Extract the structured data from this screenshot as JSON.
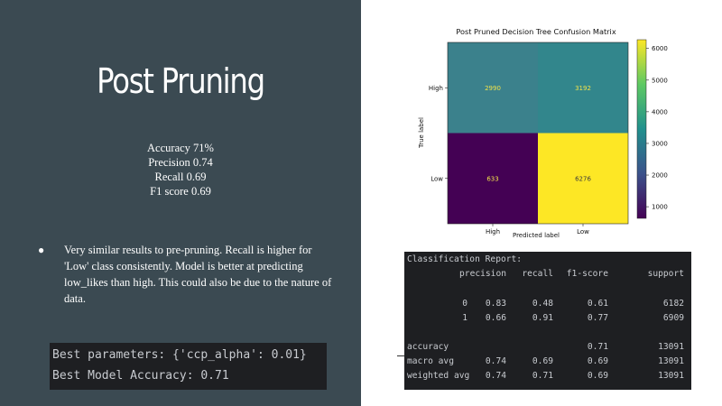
{
  "slide": {
    "title": "Post Pruning",
    "metrics": [
      "Accuracy 71%",
      "Precision 0.74",
      "Recall 0.69",
      "F1 score 0.69"
    ],
    "bullet": "Very similar results to pre-pruning. Recall is higher for 'Low' class consistently. Model is better at predicting low_likes than high. This could also be due to the nature of data.",
    "bullet_marker": "●",
    "code_lines": [
      "Best parameters: {'ccp_alpha': 0.01}",
      "Best Model Accuracy: 0.71"
    ]
  },
  "chart_data": {
    "type": "heatmap",
    "title": "Post Pruned Decision Tree Confusion Matrix",
    "xlabel": "Predicted label",
    "ylabel": "True label",
    "x_categories": [
      "High",
      "Low"
    ],
    "y_categories": [
      "High",
      "Low"
    ],
    "values": [
      [
        2990,
        3192
      ],
      [
        633,
        6276
      ]
    ],
    "colorbar": {
      "ticks": [
        1000,
        2000,
        3000,
        4000,
        5000,
        6000
      ],
      "min": 633,
      "max": 6276,
      "colormap": "viridis"
    },
    "colors": {
      "high_high": "#3b818c",
      "high_low": "#32868c",
      "low_high": "#440154",
      "low_low": "#fde725"
    }
  },
  "report": {
    "title": "Classification Report:",
    "headers": [
      "precision",
      "recall",
      "f1-score",
      "support"
    ],
    "rows": [
      {
        "label": "0",
        "precision": "0.83",
        "recall": "0.48",
        "f1": "0.61",
        "support": "6182"
      },
      {
        "label": "1",
        "precision": "0.66",
        "recall": "0.91",
        "f1": "0.77",
        "support": "6909"
      },
      {
        "label": "accuracy",
        "precision": "",
        "recall": "",
        "f1": "0.71",
        "support": "13091"
      },
      {
        "label": "macro avg",
        "precision": "0.74",
        "recall": "0.69",
        "f1": "0.69",
        "support": "13091"
      },
      {
        "label": "weighted avg",
        "precision": "0.74",
        "recall": "0.71",
        "f1": "0.69",
        "support": "13091"
      }
    ]
  }
}
